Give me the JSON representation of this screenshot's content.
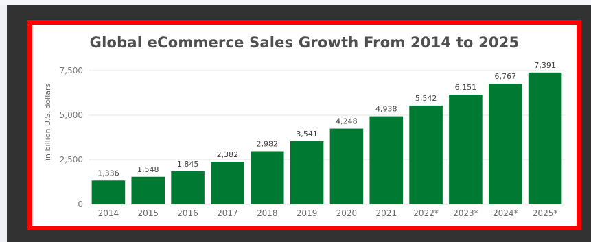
{
  "chart_data": {
    "type": "bar",
    "title": "Global eCommerce Sales Growth From 2014 to 2025",
    "xlabel": "",
    "ylabel": "in billion U.S. dollars",
    "categories": [
      "2014",
      "2015",
      "2016",
      "2017",
      "2018",
      "2019",
      "2020",
      "2021",
      "2022*",
      "2023*",
      "2024*",
      "2025*"
    ],
    "values": [
      1336,
      1548,
      1845,
      2382,
      2982,
      3541,
      4248,
      4938,
      5542,
      6151,
      6767,
      7391
    ],
    "data_labels": [
      "1,336",
      "1,548",
      "1,845",
      "2,382",
      "2,982",
      "3,541",
      "4,248",
      "4,938",
      "5,542",
      "6,151",
      "6,767",
      "7,391"
    ],
    "ylim": [
      0,
      7500
    ],
    "yticks": [
      0,
      2500,
      5000,
      7500
    ],
    "ytick_labels": [
      "0",
      "2,500",
      "5,000",
      "7,500"
    ],
    "grid": true,
    "colors": {
      "bar": "#007a33",
      "grid": "#e6e6e6"
    }
  }
}
